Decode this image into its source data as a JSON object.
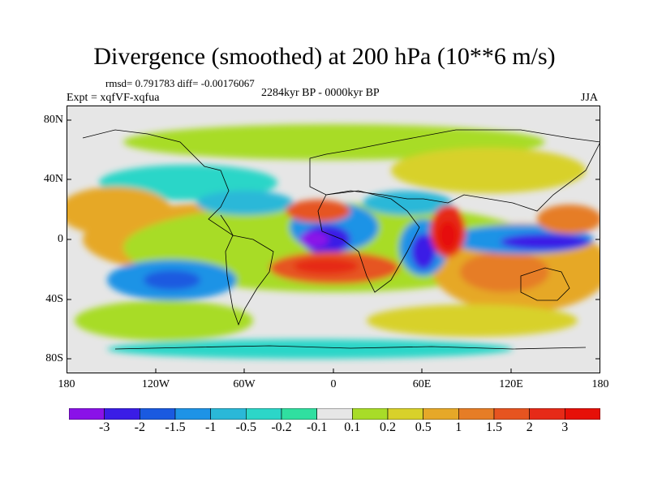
{
  "title": "Divergence (smoothed) at 200 hPa (10**6 m/s)",
  "stats": "rmsd= 0.791783 diff= -0.00176067",
  "period": "2284kyr BP - 0000kyr BP",
  "experiment": "Expt = xqfVF-xqfua",
  "season": "JJA",
  "lat_labels": [
    "80N",
    "40N",
    "0",
    "40S",
    "80S"
  ],
  "lon_labels": [
    "180",
    "120W",
    "60W",
    "0",
    "60E",
    "120E",
    "180"
  ],
  "colorbar": {
    "labels": [
      "-3",
      "-2",
      "-1.5",
      "-1",
      "-0.5",
      "-0.2",
      "-0.1",
      "0.1",
      "0.2",
      "0.5",
      "1",
      "1.5",
      "2",
      "3"
    ],
    "colors": [
      "#8a12e8",
      "#3a1de6",
      "#1a5ae0",
      "#1e93e6",
      "#2ab8d8",
      "#2cd6c8",
      "#30dfa0",
      "#e6e6e6",
      "#a8dc28",
      "#d8d12a",
      "#e6a828",
      "#e67d26",
      "#e65420",
      "#e62a18",
      "#e61008"
    ]
  }
}
